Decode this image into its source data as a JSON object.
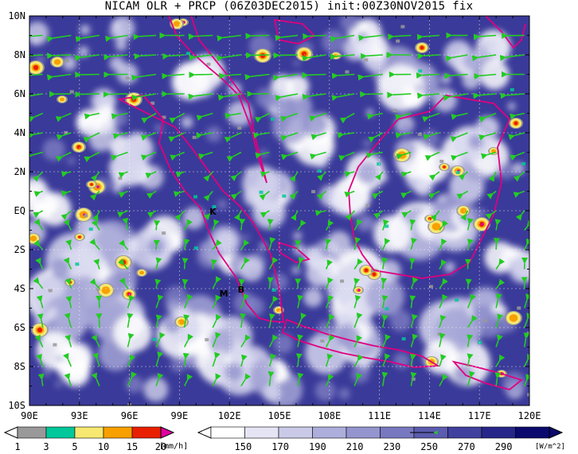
{
  "title": "NICAM OLR + PRCP (06Z03DEC2015) init:00Z30NOV2015 fix",
  "map": {
    "lon_range": [
      90,
      120
    ],
    "lat_range": [
      -10,
      10
    ],
    "lat_labels": [
      "10N",
      "8N",
      "6N",
      "4N",
      "2N",
      "EQ",
      "2S",
      "4S",
      "6S",
      "8S",
      "10S"
    ],
    "lon_labels": [
      "90E",
      "93E",
      "96E",
      "99E",
      "102E",
      "105E",
      "108E",
      "111E",
      "114E",
      "117E",
      "120E"
    ],
    "coastline_color": "#e0007f",
    "vector_color": "#22cc22",
    "grid": true,
    "station_labels": [
      {
        "text": "K",
        "lon": 100.8,
        "lat": -0.2
      },
      {
        "text": "M",
        "lon": 101.4,
        "lat": -4.4
      },
      {
        "text": "B",
        "lon": 102.5,
        "lat": -4.2
      }
    ]
  },
  "precip_colorbar": {
    "labels": [
      "1",
      "3",
      "5",
      "10",
      "15",
      "20"
    ],
    "unit": "[mm/h]",
    "colors": [
      "#999999",
      "#00c89a",
      "#f6e870",
      "#f8a000",
      "#e82000",
      "#e000a0"
    ]
  },
  "olr_colorbar": {
    "labels": [
      "150",
      "170",
      "190",
      "210",
      "230",
      "250",
      "270",
      "290"
    ],
    "unit": "[W/m^2]",
    "colors": [
      "#ffffff",
      "#e4e4f4",
      "#cacae8",
      "#aeaedc",
      "#9494cf",
      "#7878c1",
      "#5c5cb0",
      "#40409e",
      "#26268a",
      "#0a0a6e"
    ]
  }
}
